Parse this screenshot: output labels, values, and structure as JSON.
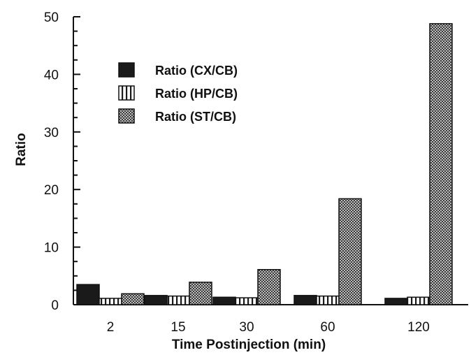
{
  "chart_data": {
    "type": "bar",
    "title": "",
    "xlabel": "Time Postinjection (min)",
    "ylabel": "Ratio",
    "categories": [
      "2",
      "15",
      "30",
      "60",
      "120"
    ],
    "ylim": [
      0,
      50
    ],
    "yticks": [
      0,
      10,
      20,
      30,
      40,
      50
    ],
    "legend_position": "upper-left",
    "grid": false,
    "series": [
      {
        "name": "Ratio (CX/CB)",
        "pattern": "solid",
        "color": "#1a1a1a",
        "values": [
          3.5,
          1.6,
          1.3,
          1.6,
          1.1
        ]
      },
      {
        "name": "Ratio (HP/CB)",
        "pattern": "vertical-stripes",
        "color": "#1a1a1a",
        "values": [
          1.1,
          1.5,
          1.2,
          1.5,
          1.3
        ]
      },
      {
        "name": "Ratio (ST/CB)",
        "pattern": "crosshatch",
        "color": "#555555",
        "values": [
          1.9,
          3.9,
          6.1,
          18.4,
          48.8
        ]
      }
    ]
  }
}
